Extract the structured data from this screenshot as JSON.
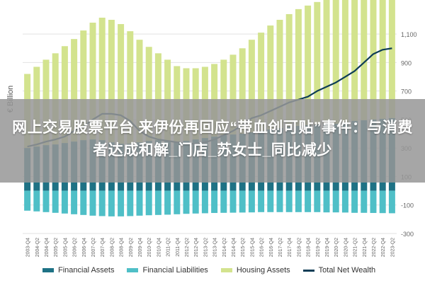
{
  "chart_data": {
    "type": "bar",
    "ylabel": "€ Billion",
    "ylim": [
      -300,
      1200
    ],
    "yticks": [
      1100,
      900,
      700,
      500,
      300,
      100,
      -100,
      -300
    ],
    "categories": [
      "2003-Q4",
      "2004-Q2",
      "2004-Q4",
      "2005-Q2",
      "2005-Q4",
      "2006-Q2",
      "2006-Q4",
      "2007-Q2",
      "2007-Q4",
      "2008-Q2",
      "2008-Q4",
      "2009-Q2",
      "2009-Q4",
      "2010-Q2",
      "2010-Q4",
      "2011-Q2",
      "2011-Q4",
      "2012-Q2",
      "2012-Q4",
      "2013-Q2",
      "2013-Q4",
      "2014-Q2",
      "2014-Q4",
      "2015-Q2",
      "2015-Q4",
      "2016-Q2",
      "2016-Q4",
      "2017-Q2",
      "2017-Q4",
      "2018-Q2",
      "2018-Q4",
      "2019-Q2",
      "2019-Q4",
      "2020-Q2",
      "2020-Q4",
      "2021-Q2",
      "2021-Q4",
      "2022-Q2",
      "2022-Q4",
      "2023-Q2"
    ],
    "series": [
      {
        "name": "Financial Assets",
        "kind": "bar",
        "color": "#1e7285",
        "values": [
          300,
          310,
          320,
          325,
          335,
          345,
          355,
          360,
          355,
          340,
          330,
          330,
          340,
          350,
          355,
          350,
          345,
          350,
          360,
          370,
          380,
          390,
          395,
          400,
          410,
          420,
          430,
          440,
          450,
          455,
          460,
          465,
          470,
          470,
          480,
          490,
          495,
          500,
          505,
          510
        ]
      },
      {
        "name": "Financial Liabilities",
        "kind": "bar",
        "color": "#4fbfc7",
        "values": [
          -140,
          -145,
          -150,
          -155,
          -160,
          -165,
          -170,
          -175,
          -178,
          -180,
          -180,
          -178,
          -175,
          -172,
          -170,
          -168,
          -165,
          -162,
          -160,
          -158,
          -156,
          -155,
          -154,
          -153,
          -152,
          -150,
          -150,
          -150,
          -150,
          -150,
          -150,
          -150,
          -152,
          -152,
          -153,
          -155,
          -155,
          -156,
          -157,
          -158
        ]
      },
      {
        "name": "Housing Assets",
        "kind": "bar",
        "color": "#d3e38e",
        "values": [
          520,
          560,
          600,
          640,
          680,
          720,
          770,
          820,
          860,
          860,
          840,
          790,
          720,
          660,
          610,
          570,
          530,
          510,
          500,
          500,
          510,
          530,
          560,
          600,
          650,
          690,
          730,
          760,
          790,
          820,
          840,
          860,
          880,
          900,
          940,
          990,
          1040,
          1070,
          1090,
          1100
        ]
      },
      {
        "name": "Total Net Wealth",
        "kind": "line",
        "color": "#0e3d56",
        "values": [
          310,
          325,
          345,
          360,
          380,
          420,
          450,
          500,
          540,
          540,
          530,
          490,
          420,
          380,
          360,
          350,
          340,
          330,
          330,
          340,
          360,
          390,
          420,
          460,
          510,
          530,
          560,
          590,
          620,
          640,
          660,
          700,
          730,
          760,
          800,
          840,
          900,
          960,
          990,
          1000
        ]
      }
    ]
  },
  "overlay": {
    "title": "网上交易股票平台 来伊份再回应“带血创可贴”事件：与消费者达成和解_门店_苏女士_同比减少"
  },
  "colors": {
    "grid": "#e2e2e2",
    "axis_text": "#666666",
    "overlay": "#969696"
  }
}
